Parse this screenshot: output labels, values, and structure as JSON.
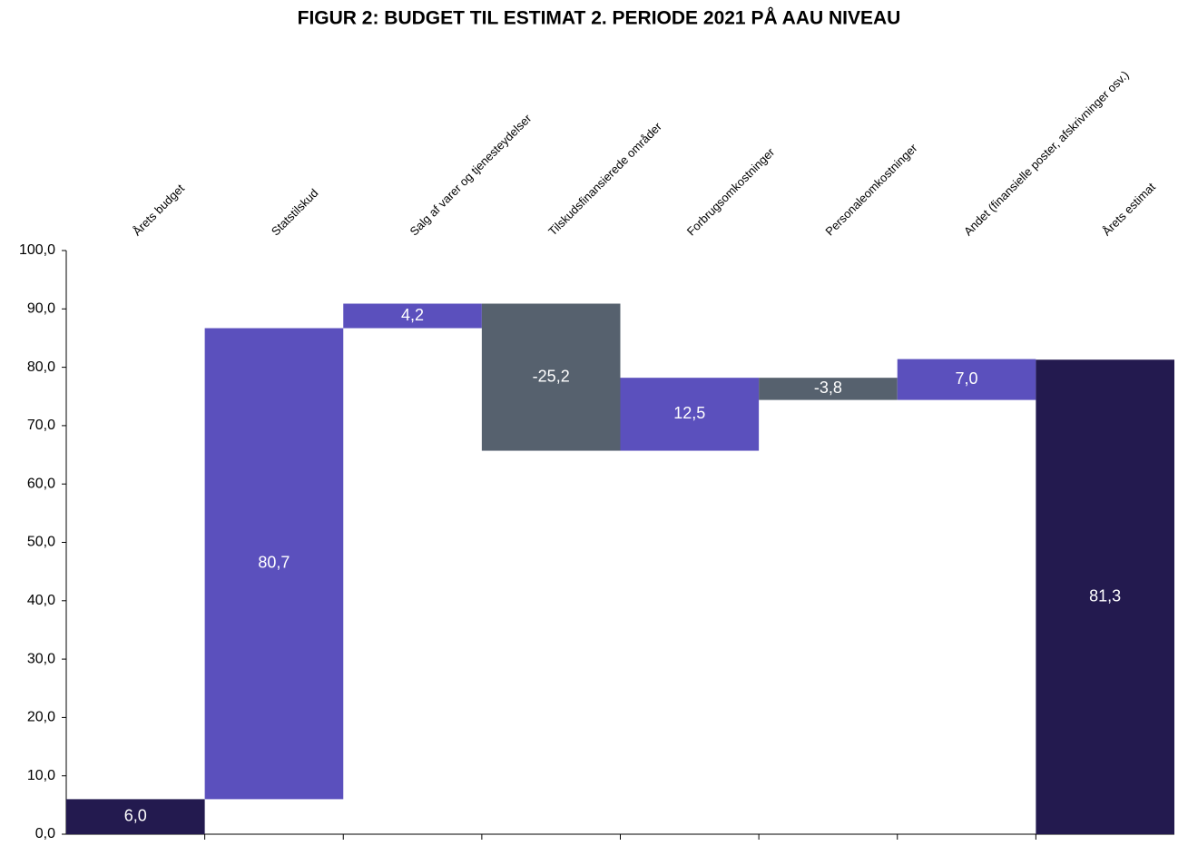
{
  "chart_data": {
    "type": "waterfall",
    "title": "FIGUR 2: BUDGET TIL ESTIMAT 2. PERIODE 2021 PÅ AAU NIVEAU",
    "categories": [
      "Årets budget",
      "Statstilskud",
      "Salg af varer og tjenesteydelser",
      "Tilskudsfinansierede områder",
      "Forbrugsomkostninger",
      "Personaleomkostninger",
      "Andet (finansielle poster, afskrivninger osv.)",
      "Årets estimat"
    ],
    "values": [
      6.0,
      80.7,
      4.2,
      -25.2,
      12.5,
      -3.8,
      7.0,
      81.3
    ],
    "value_labels": [
      "6,0",
      "80,7",
      "4,2",
      "-25,2",
      "12,5",
      "-3,8",
      "7,0",
      "81,3"
    ],
    "is_total": [
      true,
      false,
      false,
      false,
      false,
      false,
      false,
      true
    ],
    "increase_color": "#5b50bd",
    "decrease_color": "#56616e",
    "total_color": "#231a4f",
    "ylim": [
      0,
      100
    ],
    "yticks": [
      {
        "value": 0,
        "label": "0,0"
      },
      {
        "value": 10,
        "label": "10,0"
      },
      {
        "value": 20,
        "label": "20,0"
      },
      {
        "value": 30,
        "label": "30,0"
      },
      {
        "value": 40,
        "label": "40,0"
      },
      {
        "value": 50,
        "label": "50,0"
      },
      {
        "value": 60,
        "label": "60,0"
      },
      {
        "value": 70,
        "label": "70,0"
      },
      {
        "value": 80,
        "label": "80,0"
      },
      {
        "value": 90,
        "label": "90,0"
      },
      {
        "value": 100,
        "label": "100,0"
      }
    ]
  }
}
